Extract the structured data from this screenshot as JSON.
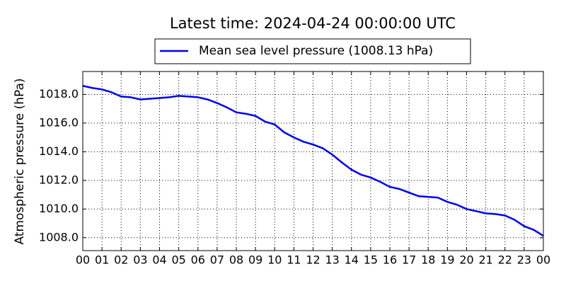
{
  "chart_data": {
    "type": "line",
    "title": "Latest time: 2024-04-24 00:00:00 UTC",
    "ylabel": "Atmospheric pressure (hPa)",
    "x": [
      0,
      0.5,
      1,
      1.5,
      2,
      2.5,
      3,
      3.5,
      4,
      4.5,
      5,
      5.5,
      6,
      6.5,
      7,
      7.5,
      8,
      8.5,
      9,
      9.5,
      10,
      10.5,
      11,
      11.5,
      12,
      12.5,
      13,
      13.5,
      14,
      14.5,
      15,
      15.5,
      16,
      16.5,
      17,
      17.5,
      18,
      18.5,
      19,
      19.5,
      20,
      20.5,
      21,
      21.5,
      22,
      22.5,
      23,
      23.5,
      24
    ],
    "series": [
      {
        "name": "Mean sea level pressure (1008.13 hPa)",
        "color": "#0000ee",
        "values": [
          1018.6,
          1018.45,
          1018.35,
          1018.15,
          1017.85,
          1017.8,
          1017.65,
          1017.7,
          1017.75,
          1017.8,
          1017.9,
          1017.85,
          1017.8,
          1017.65,
          1017.4,
          1017.1,
          1016.75,
          1016.65,
          1016.5,
          1016.1,
          1015.9,
          1015.35,
          1015.0,
          1014.7,
          1014.5,
          1014.25,
          1013.8,
          1013.25,
          1012.75,
          1012.4,
          1012.2,
          1011.9,
          1011.55,
          1011.4,
          1011.15,
          1010.9,
          1010.85,
          1010.8,
          1010.5,
          1010.3,
          1010.0,
          1009.85,
          1009.7,
          1009.65,
          1009.55,
          1009.25,
          1008.8,
          1008.55,
          1008.13
        ]
      }
    ],
    "xlim": [
      0,
      24
    ],
    "xticks": [
      {
        "value": 0,
        "label": "00"
      },
      {
        "value": 1,
        "label": "01"
      },
      {
        "value": 2,
        "label": "02"
      },
      {
        "value": 3,
        "label": "03"
      },
      {
        "value": 4,
        "label": "04"
      },
      {
        "value": 5,
        "label": "05"
      },
      {
        "value": 6,
        "label": "06"
      },
      {
        "value": 7,
        "label": "07"
      },
      {
        "value": 8,
        "label": "08"
      },
      {
        "value": 9,
        "label": "09"
      },
      {
        "value": 10,
        "label": "10"
      },
      {
        "value": 11,
        "label": "11"
      },
      {
        "value": 12,
        "label": "12"
      },
      {
        "value": 13,
        "label": "13"
      },
      {
        "value": 14,
        "label": "14"
      },
      {
        "value": 15,
        "label": "15"
      },
      {
        "value": 16,
        "label": "16"
      },
      {
        "value": 17,
        "label": "17"
      },
      {
        "value": 18,
        "label": "18"
      },
      {
        "value": 19,
        "label": "19"
      },
      {
        "value": 20,
        "label": "20"
      },
      {
        "value": 21,
        "label": "21"
      },
      {
        "value": 22,
        "label": "22"
      },
      {
        "value": 23,
        "label": "23"
      },
      {
        "value": 24,
        "label": "00"
      }
    ],
    "ylim": [
      1007.1,
      1019.6
    ],
    "yticks": [
      {
        "value": 1008,
        "label": "1008.0"
      },
      {
        "value": 1010,
        "label": "1010.0"
      },
      {
        "value": 1012,
        "label": "1012.0"
      },
      {
        "value": 1014,
        "label": "1014.0"
      },
      {
        "value": 1016,
        "label": "1016.0"
      },
      {
        "value": 1018,
        "label": "1018.0"
      }
    ],
    "grid": true
  }
}
